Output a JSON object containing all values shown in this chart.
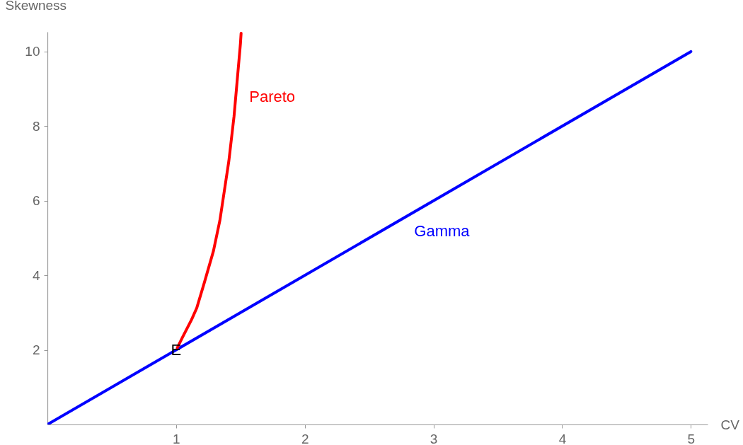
{
  "chart_data": {
    "type": "line",
    "xlabel": "CV",
    "ylabel": "Skewness",
    "xlim": [
      0,
      5.13
    ],
    "ylim": [
      0,
      10.53
    ],
    "xticks": [
      1,
      2,
      3,
      4,
      5
    ],
    "yticks": [
      2,
      4,
      6,
      8,
      10
    ],
    "grid": false,
    "legend": false,
    "series": [
      {
        "name": "Gamma",
        "color": "#0000ff",
        "x": [
          0,
          5
        ],
        "values": [
          0,
          10
        ]
      },
      {
        "name": "Pareto",
        "color": "#ff0000",
        "x": [
          1.01,
          1.02,
          1.05,
          1.12,
          1.16,
          1.22,
          1.29,
          1.34,
          1.41,
          1.45,
          1.5,
          1.505
        ],
        "values": [
          2.06,
          2.13,
          2.34,
          2.81,
          3.12,
          3.81,
          4.65,
          5.47,
          7.07,
          8.26,
          10.22,
          10.49
        ]
      }
    ],
    "annotations": [
      {
        "text": "E",
        "x": 1,
        "y": 2
      }
    ]
  }
}
